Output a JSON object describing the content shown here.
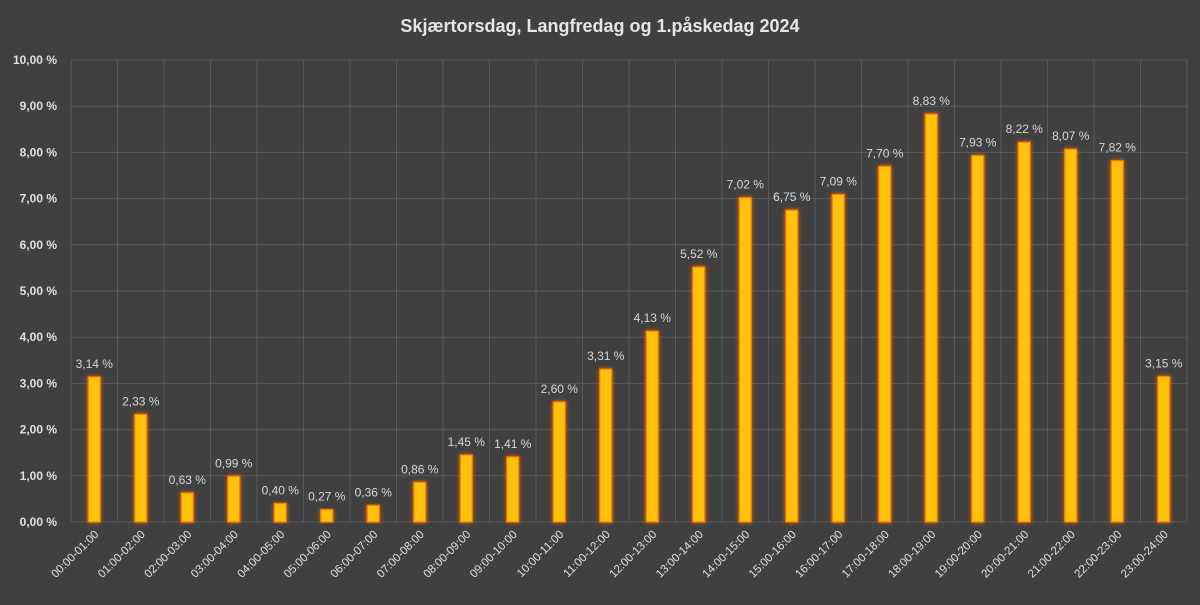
{
  "chart_data": {
    "type": "bar",
    "title": "Skjærtorsdag, Langfredag og 1.påskedag  2024",
    "xlabel": "",
    "ylabel": "",
    "ylim": [
      0,
      10
    ],
    "grid": true,
    "legend": "none",
    "bar_color": "#ffc20e",
    "bar_glow_color": "#ff7a00",
    "background_color": "#404040",
    "text_color": "#e0e0e0",
    "grid_color": "#5a5a5a",
    "ytick_labels": [
      "0,00 %",
      "1,00 %",
      "2,00 %",
      "3,00 %",
      "4,00 %",
      "5,00 %",
      "6,00 %",
      "7,00 %",
      "8,00 %",
      "9,00 %",
      "10,00 %"
    ],
    "categories": [
      "00:00-01:00",
      "01:00-02:00",
      "02:00-03:00",
      "03:00-04:00",
      "04:00-05:00",
      "05:00-06:00",
      "06:00-07:00",
      "07:00-08:00",
      "08:00-09:00",
      "09:00-10:00",
      "10:00-11:00",
      "11:00-12:00",
      "12:00-13:00",
      "13:00-14:00",
      "14:00-15:00",
      "15:00-16:00",
      "16:00-17:00",
      "17:00-18:00",
      "18:00-19:00",
      "19:00-20:00",
      "20:00-21:00",
      "21:00-22:00",
      "22:00-23:00",
      "23:00-24:00"
    ],
    "values": [
      3.14,
      2.33,
      0.63,
      0.99,
      0.4,
      0.27,
      0.36,
      0.86,
      1.45,
      1.41,
      2.6,
      3.31,
      4.13,
      5.52,
      7.02,
      6.75,
      7.09,
      7.7,
      8.83,
      7.93,
      8.22,
      8.07,
      7.82,
      3.15
    ],
    "data_labels": [
      "3,14 %",
      "2,33 %",
      "0,63 %",
      "0,99 %",
      "0,40 %",
      "0,27 %",
      "0,36 %",
      "0,86 %",
      "1,45 %",
      "1,41 %",
      "2,60 %",
      "3,31 %",
      "4,13 %",
      "5,52 %",
      "7,02 %",
      "6,75 %",
      "7,09 %",
      "7,70 %",
      "8,83 %",
      "7,93 %",
      "8,22 %",
      "8,07 %",
      "7,82 %",
      "3,15 %"
    ]
  }
}
